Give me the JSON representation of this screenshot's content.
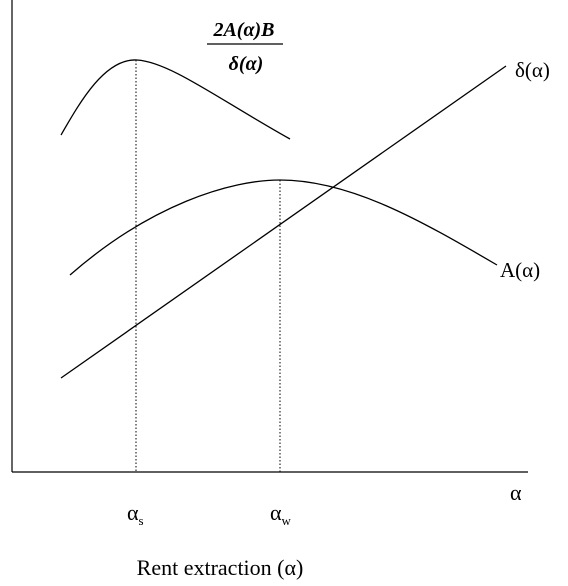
{
  "diagram": {
    "xlabel": "Rent extraction (α)",
    "axis_symbol": "α",
    "fraction_numerator": "2A(α)B",
    "fraction_denominator": "δ(α)",
    "delta_label": "δ(α)",
    "a_label": "A(α)",
    "alpha_s": {
      "base": "α",
      "sub": "s"
    },
    "alpha_w": {
      "base": "α",
      "sub": "w"
    }
  }
}
